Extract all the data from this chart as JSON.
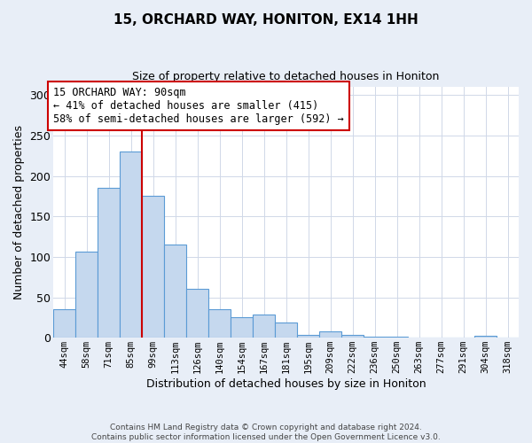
{
  "title": "15, ORCHARD WAY, HONITON, EX14 1HH",
  "subtitle": "Size of property relative to detached houses in Honiton",
  "xlabel": "Distribution of detached houses by size in Honiton",
  "ylabel": "Number of detached properties",
  "bar_labels": [
    "44sqm",
    "58sqm",
    "71sqm",
    "85sqm",
    "99sqm",
    "113sqm",
    "126sqm",
    "140sqm",
    "154sqm",
    "167sqm",
    "181sqm",
    "195sqm",
    "209sqm",
    "222sqm",
    "236sqm",
    "250sqm",
    "263sqm",
    "277sqm",
    "291sqm",
    "304sqm",
    "318sqm"
  ],
  "bar_values": [
    35,
    107,
    185,
    230,
    176,
    115,
    60,
    35,
    25,
    29,
    19,
    4,
    8,
    3,
    1,
    1,
    0,
    0,
    0,
    2,
    0
  ],
  "bar_color": "#c5d8ee",
  "bar_edge_color": "#5b9bd5",
  "property_line_index": 4,
  "property_line_color": "#cc0000",
  "ylim": [
    0,
    310
  ],
  "yticks": [
    0,
    50,
    100,
    150,
    200,
    250,
    300
  ],
  "annotation_text": "15 ORCHARD WAY: 90sqm\n← 41% of detached houses are smaller (415)\n58% of semi-detached houses are larger (592) →",
  "annotation_box_facecolor": "#ffffff",
  "annotation_box_edgecolor": "#cc0000",
  "plot_bg_color": "#ffffff",
  "fig_bg_color": "#e8eef7",
  "footer_line1": "Contains HM Land Registry data © Crown copyright and database right 2024.",
  "footer_line2": "Contains public sector information licensed under the Open Government Licence v3.0."
}
